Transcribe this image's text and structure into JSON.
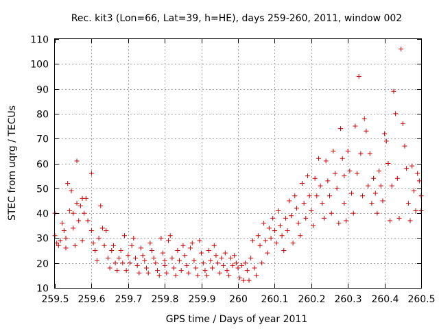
{
  "chart_data": {
    "type": "scatter",
    "title": "Rec. kit3 (Lon=66, Lat=39, h=HE), days 259-260, 2011, window 002",
    "xlabel": "GPS time / Days of year 2011",
    "ylabel": "STEC from uqrg / TECUs",
    "xlim": [
      259.5,
      260.5
    ],
    "ylim": [
      10,
      110
    ],
    "xticks": [
      "259.5",
      "259.6",
      "259.7",
      "259.8",
      "259.9",
      "260",
      "260.1",
      "260.2",
      "260.3",
      "260.4",
      "260.5"
    ],
    "yticks": [
      "10",
      "20",
      "30",
      "40",
      "50",
      "60",
      "70",
      "80",
      "90",
      "100",
      "110"
    ],
    "grid": true,
    "marker": "plus",
    "color": "#cc0000",
    "series": [
      {
        "name": "STEC",
        "points": [
          [
            259.5,
            40
          ],
          [
            259.5,
            31
          ],
          [
            259.505,
            28
          ],
          [
            259.51,
            27
          ],
          [
            259.515,
            29
          ],
          [
            259.52,
            36
          ],
          [
            259.525,
            33
          ],
          [
            259.53,
            30
          ],
          [
            259.53,
            26
          ],
          [
            259.535,
            52
          ],
          [
            259.54,
            41
          ],
          [
            259.545,
            49
          ],
          [
            259.55,
            40
          ],
          [
            259.55,
            34
          ],
          [
            259.555,
            27
          ],
          [
            259.56,
            61
          ],
          [
            259.56,
            44
          ],
          [
            259.565,
            37
          ],
          [
            259.57,
            43
          ],
          [
            259.575,
            46
          ],
          [
            259.575,
            29
          ],
          [
            259.58,
            40
          ],
          [
            259.585,
            46
          ],
          [
            259.59,
            37
          ],
          [
            259.6,
            56
          ],
          [
            259.6,
            33
          ],
          [
            259.605,
            28
          ],
          [
            259.61,
            25
          ],
          [
            259.615,
            21
          ],
          [
            259.62,
            30
          ],
          [
            259.625,
            43
          ],
          [
            259.63,
            34
          ],
          [
            259.635,
            27
          ],
          [
            259.64,
            33
          ],
          [
            259.645,
            22
          ],
          [
            259.65,
            18
          ],
          [
            259.655,
            25
          ],
          [
            259.66,
            27
          ],
          [
            259.665,
            20
          ],
          [
            259.67,
            17
          ],
          [
            259.675,
            22
          ],
          [
            259.68,
            25
          ],
          [
            259.685,
            20
          ],
          [
            259.69,
            31
          ],
          [
            259.695,
            17
          ],
          [
            259.7,
            23
          ],
          [
            259.705,
            20
          ],
          [
            259.71,
            27
          ],
          [
            259.715,
            30
          ],
          [
            259.72,
            22
          ],
          [
            259.725,
            19
          ],
          [
            259.73,
            16
          ],
          [
            259.735,
            26
          ],
          [
            259.74,
            23
          ],
          [
            259.745,
            21
          ],
          [
            259.75,
            18
          ],
          [
            259.755,
            16
          ],
          [
            259.76,
            28
          ],
          [
            259.765,
            25
          ],
          [
            259.77,
            22
          ],
          [
            259.775,
            20
          ],
          [
            259.78,
            17
          ],
          [
            259.785,
            15
          ],
          [
            259.79,
            30
          ],
          [
            259.795,
            24
          ],
          [
            259.8,
            21
          ],
          [
            259.8,
            19
          ],
          [
            259.805,
            16
          ],
          [
            259.81,
            29
          ],
          [
            259.815,
            31
          ],
          [
            259.82,
            22
          ],
          [
            259.825,
            18
          ],
          [
            259.83,
            15
          ],
          [
            259.835,
            25
          ],
          [
            259.84,
            21
          ],
          [
            259.845,
            17
          ],
          [
            259.85,
            27
          ],
          [
            259.855,
            23
          ],
          [
            259.86,
            19
          ],
          [
            259.865,
            16
          ],
          [
            259.87,
            26
          ],
          [
            259.875,
            28
          ],
          [
            259.88,
            21
          ],
          [
            259.885,
            18
          ],
          [
            259.89,
            15
          ],
          [
            259.895,
            29
          ],
          [
            259.9,
            24
          ],
          [
            259.905,
            20
          ],
          [
            259.91,
            17
          ],
          [
            259.915,
            15
          ],
          [
            259.92,
            25
          ],
          [
            259.925,
            21
          ],
          [
            259.93,
            18
          ],
          [
            259.935,
            27
          ],
          [
            259.94,
            23
          ],
          [
            259.945,
            20
          ],
          [
            259.95,
            16
          ],
          [
            259.955,
            22
          ],
          [
            259.96,
            19
          ],
          [
            259.965,
            24
          ],
          [
            259.97,
            17
          ],
          [
            259.975,
            15
          ],
          [
            259.98,
            22
          ],
          [
            259.985,
            19
          ],
          [
            259.99,
            23
          ],
          [
            259.995,
            20
          ],
          [
            260.0,
            18
          ],
          [
            260.005,
            14
          ],
          [
            260.01,
            19
          ],
          [
            260.015,
            13
          ],
          [
            260.02,
            20
          ],
          [
            260.025,
            17
          ],
          [
            260.03,
            13
          ],
          [
            260.035,
            22
          ],
          [
            260.04,
            29
          ],
          [
            260.045,
            18
          ],
          [
            260.05,
            15
          ],
          [
            260.055,
            31
          ],
          [
            260.06,
            27
          ],
          [
            260.065,
            20
          ],
          [
            260.07,
            36
          ],
          [
            260.075,
            29
          ],
          [
            260.08,
            24
          ],
          [
            260.085,
            34
          ],
          [
            260.09,
            30
          ],
          [
            260.095,
            38
          ],
          [
            260.1,
            33
          ],
          [
            260.105,
            28
          ],
          [
            260.11,
            41
          ],
          [
            260.115,
            35
          ],
          [
            260.12,
            31
          ],
          [
            260.125,
            25
          ],
          [
            260.13,
            38
          ],
          [
            260.135,
            33
          ],
          [
            260.14,
            45
          ],
          [
            260.145,
            39
          ],
          [
            260.15,
            28
          ],
          [
            260.155,
            47
          ],
          [
            260.16,
            42
          ],
          [
            260.165,
            36
          ],
          [
            260.17,
            31
          ],
          [
            260.175,
            52
          ],
          [
            260.18,
            44
          ],
          [
            260.185,
            38
          ],
          [
            260.19,
            55
          ],
          [
            260.195,
            47
          ],
          [
            260.2,
            41
          ],
          [
            260.205,
            35
          ],
          [
            260.21,
            54
          ],
          [
            260.215,
            47
          ],
          [
            260.22,
            62
          ],
          [
            260.225,
            51
          ],
          [
            260.23,
            44
          ],
          [
            260.235,
            38
          ],
          [
            260.24,
            61
          ],
          [
            260.245,
            53
          ],
          [
            260.25,
            47
          ],
          [
            260.255,
            40
          ],
          [
            260.26,
            65
          ],
          [
            260.265,
            56
          ],
          [
            260.27,
            50
          ],
          [
            260.275,
            36
          ],
          [
            260.28,
            74
          ],
          [
            260.285,
            62
          ],
          [
            260.29,
            55
          ],
          [
            260.29,
            44
          ],
          [
            260.295,
            37
          ],
          [
            260.3,
            65
          ],
          [
            260.305,
            57
          ],
          [
            260.31,
            48
          ],
          [
            260.315,
            40
          ],
          [
            260.32,
            75
          ],
          [
            260.325,
            56
          ],
          [
            260.33,
            95
          ],
          [
            260.335,
            64
          ],
          [
            260.34,
            47
          ],
          [
            260.345,
            78
          ],
          [
            260.35,
            73
          ],
          [
            260.355,
            51
          ],
          [
            260.36,
            64
          ],
          [
            260.365,
            44
          ],
          [
            260.37,
            54
          ],
          [
            260.375,
            48
          ],
          [
            260.38,
            40
          ],
          [
            260.385,
            57
          ],
          [
            260.39,
            51
          ],
          [
            260.395,
            45
          ],
          [
            260.4,
            72
          ],
          [
            260.405,
            69
          ],
          [
            260.41,
            60
          ],
          [
            260.415,
            37
          ],
          [
            260.42,
            51
          ],
          [
            260.425,
            89
          ],
          [
            260.43,
            80
          ],
          [
            260.435,
            54
          ],
          [
            260.44,
            38
          ],
          [
            260.445,
            106
          ],
          [
            260.45,
            76
          ],
          [
            260.455,
            67
          ],
          [
            260.46,
            58
          ],
          [
            260.465,
            44
          ],
          [
            260.47,
            37
          ],
          [
            260.475,
            59
          ],
          [
            260.48,
            49
          ],
          [
            260.485,
            41
          ],
          [
            260.49,
            56
          ],
          [
            260.495,
            53
          ],
          [
            260.5,
            47
          ],
          [
            260.5,
            41
          ]
        ]
      }
    ]
  }
}
